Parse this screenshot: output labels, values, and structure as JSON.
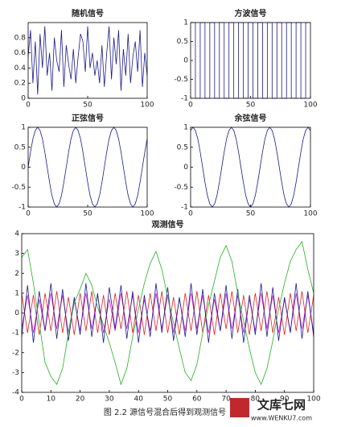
{
  "chart_data": [
    {
      "type": "line",
      "title": "随机信号",
      "xlim": [
        0,
        100
      ],
      "ylim": [
        0,
        1
      ],
      "xticks": [
        0,
        50,
        100
      ],
      "yticks": [
        0,
        0.2,
        0.4,
        0.6,
        0.8
      ],
      "x": [
        0,
        2,
        4,
        6,
        8,
        10,
        12,
        14,
        16,
        18,
        20,
        22,
        24,
        26,
        28,
        30,
        32,
        34,
        36,
        38,
        40,
        42,
        44,
        46,
        48,
        50,
        52,
        54,
        56,
        58,
        60,
        62,
        64,
        66,
        68,
        70,
        72,
        74,
        76,
        78,
        80,
        82,
        84,
        86,
        88,
        90,
        92,
        94,
        96,
        98,
        100
      ],
      "series": [
        {
          "color": "#1a1a8c",
          "values": [
            0.55,
            0.9,
            0.2,
            0.75,
            0.05,
            0.85,
            0.4,
            0.95,
            0.3,
            0.6,
            0.1,
            0.8,
            0.5,
            0.35,
            0.9,
            0.15,
            0.7,
            0.45,
            0.25,
            0.65,
            0.2,
            0.55,
            0.85,
            0.75,
            0.35,
            0.95,
            0.4,
            0.6,
            0.3,
            0.5,
            0.2,
            0.7,
            0.15,
            0.6,
            0.95,
            0.25,
            0.8,
            0.45,
            0.9,
            0.1,
            0.65,
            0.3,
            0.85,
            0.2,
            0.55,
            0.75,
            0.35,
            0.9,
            0.15,
            0.6,
            0.3
          ]
        }
      ]
    },
    {
      "type": "line",
      "title": "方波信号",
      "xlim": [
        0,
        100
      ],
      "ylim": [
        -1,
        1
      ],
      "xticks": [
        0,
        50,
        100
      ],
      "yticks": [
        -1,
        -0.5,
        0,
        0.5,
        1
      ],
      "x": [
        0,
        4,
        4,
        8,
        8,
        12,
        12,
        16,
        16,
        20,
        20,
        24,
        24,
        28,
        28,
        32,
        32,
        36,
        36,
        40,
        40,
        44,
        44,
        48,
        48,
        52,
        52,
        56,
        56,
        60,
        60,
        64,
        64,
        68,
        68,
        72,
        72,
        76,
        76,
        80,
        80,
        84,
        84,
        88,
        88,
        92,
        92,
        96,
        96,
        100
      ],
      "series": [
        {
          "color": "#1a1a8c",
          "values": [
            1,
            1,
            -1,
            -1,
            1,
            1,
            -1,
            -1,
            1,
            1,
            -1,
            -1,
            1,
            1,
            -1,
            -1,
            1,
            1,
            -1,
            -1,
            1,
            1,
            -1,
            -1,
            1,
            1,
            -1,
            -1,
            1,
            1,
            -1,
            -1,
            1,
            1,
            -1,
            -1,
            1,
            1,
            -1,
            -1,
            1,
            1,
            -1,
            -1,
            1,
            1,
            -1,
            -1,
            1,
            1
          ]
        }
      ]
    },
    {
      "type": "line",
      "title": "正弦信号",
      "xlim": [
        0,
        100
      ],
      "ylim": [
        -1,
        1
      ],
      "xticks": [
        0,
        50,
        100
      ],
      "yticks": [
        -1,
        -0.5,
        0,
        0.5,
        1
      ],
      "x": [
        0,
        2,
        4,
        6,
        8,
        10,
        12,
        14,
        16,
        18,
        20,
        22,
        24,
        26,
        28,
        30,
        32,
        34,
        36,
        38,
        40,
        42,
        44,
        46,
        48,
        50,
        52,
        54,
        56,
        58,
        60,
        62,
        64,
        66,
        68,
        70,
        72,
        74,
        76,
        78,
        80,
        82,
        84,
        86,
        88,
        90,
        92,
        94,
        96,
        98,
        100
      ],
      "series": [
        {
          "color": "#1a1a8c",
          "values": [
            0,
            0.38,
            0.71,
            0.92,
            1,
            0.92,
            0.71,
            0.38,
            0,
            -0.38,
            -0.71,
            -0.92,
            -1,
            -0.92,
            -0.71,
            -0.38,
            0,
            0.38,
            0.71,
            0.92,
            1,
            0.92,
            0.71,
            0.38,
            0,
            -0.38,
            -0.71,
            -0.92,
            -1,
            -0.92,
            -0.71,
            -0.38,
            0,
            0.38,
            0.71,
            0.92,
            1,
            0.92,
            0.71,
            0.38,
            0,
            -0.38,
            -0.71,
            -0.92,
            -1,
            -0.92,
            -0.71,
            -0.38,
            0,
            0.38,
            0.71
          ]
        }
      ]
    },
    {
      "type": "line",
      "title": "余弦信号",
      "xlim": [
        0,
        100
      ],
      "ylim": [
        -1,
        1
      ],
      "xticks": [
        0,
        50,
        100
      ],
      "yticks": [
        -1,
        -0.5,
        0,
        0.5,
        1
      ],
      "x": [
        0,
        2,
        4,
        6,
        8,
        10,
        12,
        14,
        16,
        18,
        20,
        22,
        24,
        26,
        28,
        30,
        32,
        34,
        36,
        38,
        40,
        42,
        44,
        46,
        48,
        50,
        52,
        54,
        56,
        58,
        60,
        62,
        64,
        66,
        68,
        70,
        72,
        74,
        76,
        78,
        80,
        82,
        84,
        86,
        88,
        90,
        92,
        94,
        96,
        98,
        100
      ],
      "series": [
        {
          "color": "#1a1a8c",
          "values": [
            0.92,
            1,
            0.92,
            0.71,
            0.38,
            0,
            -0.38,
            -0.71,
            -0.92,
            -1,
            -0.92,
            -0.71,
            -0.38,
            0,
            0.38,
            0.71,
            0.92,
            1,
            0.92,
            0.71,
            0.38,
            0,
            -0.38,
            -0.71,
            -0.92,
            -1,
            -0.92,
            -0.71,
            -0.38,
            0,
            0.38,
            0.71,
            0.92,
            1,
            0.92,
            0.71,
            0.38,
            0,
            -0.38,
            -0.71,
            -0.92,
            -1,
            -0.92,
            -0.71,
            -0.38,
            0,
            0.38,
            0.71,
            0.92,
            1,
            0.92
          ]
        }
      ]
    },
    {
      "type": "line",
      "title": "观测信号",
      "xlim": [
        0,
        100
      ],
      "ylim": [
        -4,
        4
      ],
      "xticks": [
        0,
        10,
        20,
        30,
        40,
        50,
        60,
        70,
        80,
        90,
        100
      ],
      "yticks": [
        -4,
        -3,
        -2,
        -1,
        0,
        1,
        2,
        3,
        4
      ],
      "x": [
        0,
        2,
        4,
        6,
        8,
        10,
        12,
        14,
        16,
        18,
        20,
        22,
        24,
        26,
        28,
        30,
        32,
        34,
        36,
        38,
        40,
        42,
        44,
        46,
        48,
        50,
        52,
        54,
        56,
        58,
        60,
        62,
        64,
        66,
        68,
        70,
        72,
        74,
        76,
        78,
        80,
        82,
        84,
        86,
        88,
        90,
        92,
        94,
        96,
        98,
        100
      ],
      "series": [
        {
          "color": "#e02020",
          "values": [
            1,
            -1,
            0.9,
            -1.1,
            1,
            -0.9,
            1.1,
            -1,
            0.8,
            -1.1,
            1,
            -0.9,
            1.1,
            -1,
            0.9,
            -1.1,
            1,
            -0.8,
            1.1,
            -1,
            0.9,
            -1.1,
            1,
            -0.9,
            1.1,
            -1,
            0.8,
            -1.1,
            1,
            -0.9,
            1.1,
            -1,
            0.9,
            -1.1,
            1,
            -0.8,
            1.1,
            -1,
            0.9,
            -1.1,
            1,
            -0.9,
            1.1,
            -1,
            0.8,
            -1.1,
            1,
            -0.9,
            1.1,
            -1,
            0.9
          ]
        },
        {
          "color": "#d020d0",
          "values": [
            -0.8,
            0.9,
            -1,
            0.7,
            -0.9,
            1,
            -0.8,
            0.9,
            -1,
            0.7,
            -0.9,
            1,
            -0.8,
            0.9,
            -1,
            0.7,
            -0.9,
            1,
            -0.8,
            0.9,
            -1,
            0.7,
            -0.9,
            1,
            -0.8,
            0.9,
            -1,
            0.7,
            -0.9,
            1,
            -0.8,
            0.9,
            -1,
            0.7,
            -0.9,
            1,
            -0.8,
            0.9,
            -1,
            0.7,
            -0.9,
            1,
            -0.8,
            0.9,
            -1,
            0.7,
            -0.9,
            1,
            -0.8,
            0.9,
            -1
          ]
        },
        {
          "color": "#1a1a8c",
          "values": [
            -1.2,
            1.4,
            -1.5,
            1.1,
            -0.9,
            1.5,
            -1.3,
            1.2,
            -1.4,
            0.8,
            -1.1,
            1.5,
            -1.2,
            1,
            -1.5,
            1.3,
            -0.8,
            1.4,
            -1.3,
            1.1,
            -1.5,
            0.9,
            -1.2,
            1.5,
            -1,
            1.3,
            -1.4,
            0.8,
            -1.2,
            1.5,
            -1.1,
            1.2,
            -1.5,
            1,
            -0.9,
            1.4,
            -1.3,
            1.2,
            -1.5,
            0.9,
            -1.1,
            1.5,
            -1.2,
            1.3,
            -1.4,
            0.8,
            -1,
            1.5,
            -1.3,
            1.1,
            -1.2
          ]
        },
        {
          "color": "#20b020",
          "values": [
            2.8,
            3.2,
            1.5,
            -0.5,
            -2.5,
            -3.2,
            -3.6,
            -2.8,
            -1,
            0.5,
            1.2,
            2,
            1.4,
            0.3,
            -0.6,
            -1.5,
            -2.5,
            -3.6,
            -2.8,
            -1.2,
            0.2,
            1.5,
            2.5,
            3.1,
            2.2,
            0.8,
            -0.5,
            -1.8,
            -3,
            -3.4,
            -2.6,
            -1,
            0.4,
            1.6,
            2.8,
            3.4,
            2.6,
            1,
            -0.4,
            -1.8,
            -3,
            -3.6,
            -2.8,
            -1.4,
            0.2,
            1.5,
            2.6,
            3.2,
            3.6,
            2.2,
            1
          ]
        }
      ]
    }
  ],
  "caption": "图 2.2   源信号混合后得到观测信号",
  "logo": {
    "name": "文库七网",
    "url": "www.WENKU7.com"
  }
}
